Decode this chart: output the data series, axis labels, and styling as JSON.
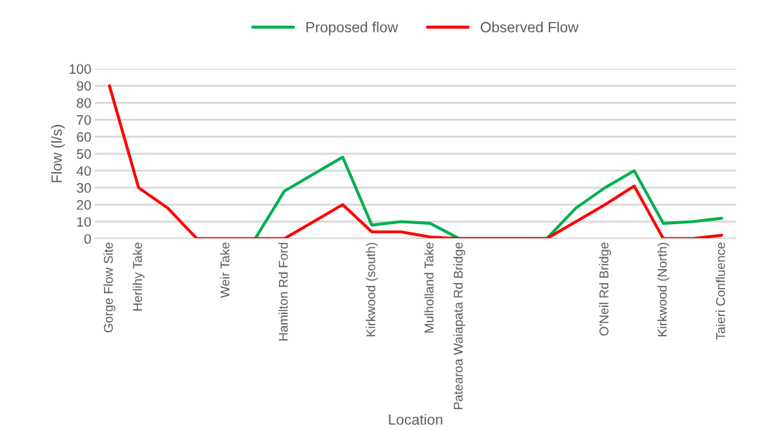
{
  "chart_data": {
    "type": "line",
    "xlabel": "Location",
    "ylabel": "Flow (l/s)",
    "categories": [
      "Gorge Flow Site",
      "Herlihy Take",
      null,
      null,
      "Weir Take",
      null,
      "Hamilton Rd Ford",
      null,
      null,
      "Kirkwood (south)",
      null,
      "Mulholland Take",
      "Patearoa Waiapata Rd Bridge",
      null,
      null,
      null,
      null,
      "O'Neil Rd Bridge",
      null,
      "Kirkwood (North)",
      null,
      "Taieri Confluence"
    ],
    "series": [
      {
        "name": "Proposed flow",
        "color": "#00b050",
        "values": [
          null,
          null,
          null,
          null,
          null,
          0,
          28,
          38,
          48,
          8,
          10,
          9,
          0,
          0,
          0,
          0,
          18,
          30,
          40,
          9,
          10,
          12
        ]
      },
      {
        "name": "Observed Flow",
        "color": "#ff0000",
        "values": [
          90,
          30,
          18,
          0,
          0,
          0,
          0,
          10,
          20,
          4,
          4,
          1,
          0,
          0,
          0,
          0,
          10,
          20,
          31,
          0,
          0,
          2
        ]
      }
    ],
    "ylim": [
      0,
      100
    ],
    "yticks": [
      0,
      10,
      20,
      30,
      40,
      50,
      60,
      70,
      80,
      90,
      100
    ],
    "grid": "y",
    "legend": "top",
    "line_style": "solid",
    "marker": "none"
  }
}
